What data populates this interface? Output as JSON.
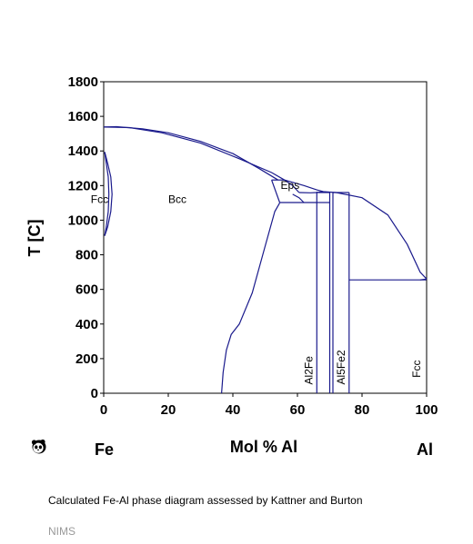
{
  "diagram": {
    "ylabel": "T [C]",
    "xlabel": "Mol % Al",
    "left_element": "Fe",
    "right_element": "Al",
    "x_ticks": [
      "0",
      "20",
      "40",
      "60",
      "80",
      "100"
    ],
    "y_ticks": [
      "0",
      "200",
      "400",
      "600",
      "800",
      "1000",
      "1200",
      "1400",
      "1600",
      "1800"
    ],
    "phases": {
      "fcc_fe": "Fcc",
      "bcc": "Bcc",
      "eps": "Eps",
      "al2fe": "Al2Fe",
      "al5fe2": "Al5Fe2",
      "fcc_al": "Fcc"
    },
    "line_color": "#1a1a8c",
    "logo_icon": "panda-icon"
  },
  "chart_data": {
    "type": "phase-diagram",
    "xlabel": "Mol % Al",
    "ylabel": "T [C]",
    "xlim": [
      0,
      100
    ],
    "ylim": [
      0,
      1800
    ],
    "x_ticks": [
      0,
      20,
      40,
      60,
      80,
      100
    ],
    "y_ticks": [
      0,
      200,
      400,
      600,
      800,
      1000,
      1200,
      1400,
      1600,
      1800
    ],
    "grid": false,
    "boundaries": [
      {
        "x": [
          0,
          4,
          12,
          20,
          30,
          40,
          48,
          54
        ],
        "y": [
          1538,
          1540,
          1528,
          1505,
          1455,
          1385,
          1300,
          1232
        ]
      },
      {
        "x": [
          0,
          8,
          18,
          30,
          42,
          52,
          56
        ],
        "y": [
          1538,
          1535,
          1505,
          1445,
          1355,
          1275,
          1232
        ]
      },
      {
        "x": [
          56,
          62,
          66,
          68,
          72
        ],
        "y": [
          1232,
          1200,
          1175,
          1165,
          1160
        ]
      },
      {
        "x": [
          72,
          80,
          88,
          94,
          98,
          100
        ],
        "y": [
          1160,
          1130,
          1030,
          860,
          700,
          660
        ]
      },
      {
        "x": [
          36.5,
          37,
          38,
          39.5,
          42,
          46,
          50,
          53,
          54.5
        ],
        "y": [
          0,
          120,
          250,
          340,
          400,
          580,
          850,
          1050,
          1100
        ]
      },
      {
        "x": [
          0.3,
          1.2,
          2.2,
          2.6,
          2.2,
          1.2,
          0.3
        ],
        "y": [
          910,
          960,
          1050,
          1150,
          1250,
          1330,
          1394
        ]
      },
      {
        "x": [
          0.3,
          0.8,
          1.4,
          1.6,
          1.4,
          0.8,
          0.3
        ],
        "y": [
          910,
          960,
          1050,
          1150,
          1250,
          1330,
          1394
        ]
      },
      {
        "x": [
          52,
          56
        ],
        "y": [
          1232,
          1232
        ]
      },
      {
        "x": [
          54.5,
          66
        ],
        "y": [
          1102,
          1102
        ]
      },
      {
        "x": [
          52,
          54.5
        ],
        "y": [
          1232,
          1102
        ]
      },
      {
        "x": [
          56,
          58.5,
          60.5
        ],
        "y": [
          1232,
          1200,
          1160
        ]
      },
      {
        "x": [
          58.5,
          60.5,
          62
        ],
        "y": [
          1150,
          1130,
          1102
        ]
      },
      {
        "x": [
          60.5,
          64,
          66,
          68
        ],
        "y": [
          1160,
          1158,
          1160,
          1165
        ]
      },
      {
        "x": [
          66,
          66
        ],
        "y": [
          0,
          1165
        ]
      },
      {
        "x": [
          66,
          70
        ],
        "y": [
          1160,
          1160
        ]
      },
      {
        "x": [
          66,
          70
        ],
        "y": [
          1102,
          1102
        ]
      },
      {
        "x": [
          70,
          70
        ],
        "y": [
          0,
          1160
        ]
      },
      {
        "x": [
          71,
          71
        ],
        "y": [
          0,
          1160
        ]
      },
      {
        "x": [
          71,
          76
        ],
        "y": [
          1160,
          1160
        ]
      },
      {
        "x": [
          76,
          76
        ],
        "y": [
          0,
          1160
        ]
      },
      {
        "x": [
          76,
          99.9
        ],
        "y": [
          655,
          655
        ]
      },
      {
        "x": [
          98,
          100
        ],
        "y": [
          655,
          660
        ]
      }
    ],
    "phase_labels": [
      {
        "text": "Fcc",
        "x": 3.5,
        "y": 1100
      },
      {
        "text": "Bcc",
        "x": 23,
        "y": 1100
      },
      {
        "text": "Eps",
        "x": 58.5,
        "y": 1185
      },
      {
        "text": "Al2Fe",
        "x": 64.5,
        "y": 60,
        "rotated": true
      },
      {
        "text": "Al5Fe2",
        "x": 74.5,
        "y": 60,
        "rotated": true
      },
      {
        "text": "Fcc",
        "x": 98,
        "y": 90,
        "rotated": true
      }
    ]
  },
  "caption": "Calculated Fe-Al phase diagram assessed by Kattner and Burton",
  "credit": "NIMS"
}
